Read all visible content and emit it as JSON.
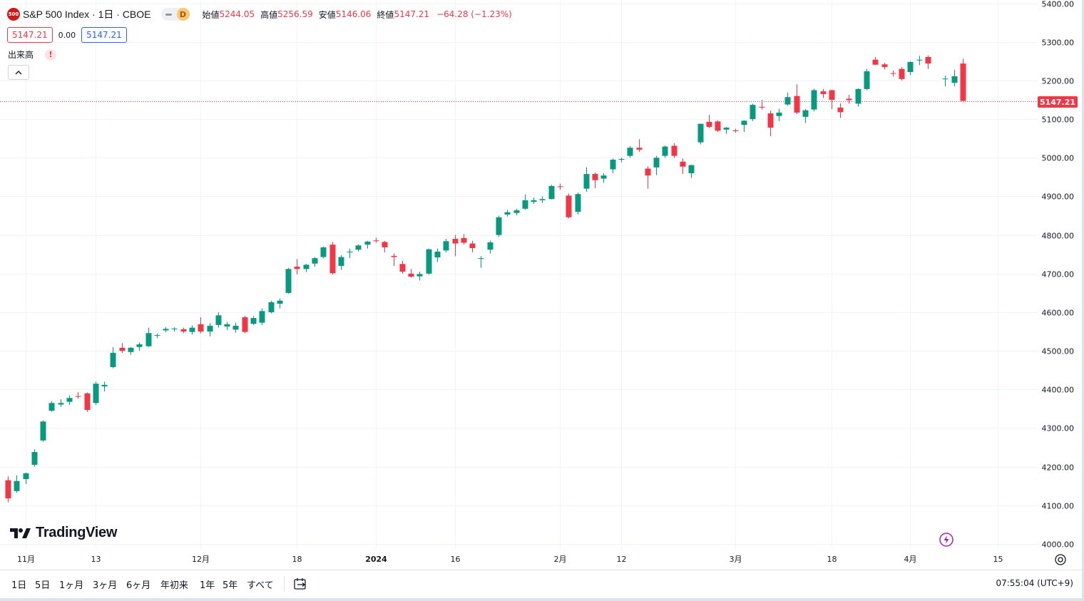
{
  "symbol": {
    "logo_text": "500",
    "title": "S&P 500 Index · 1日 · CBOE",
    "source_badge": "D"
  },
  "ohlc": {
    "open_label": "始値",
    "open": "5244.05",
    "high_label": "高値",
    "high": "5256.59",
    "low_label": "安値",
    "low": "5146.06",
    "close_label": "終値",
    "close": "5147.21",
    "change": "−64.28 (−1.23%)"
  },
  "badges": {
    "sell": "5147.21",
    "spread": "0.00",
    "buy": "5147.21"
  },
  "volume": {
    "label": "出来高",
    "warning": "!"
  },
  "last_price_tag": "5147.21",
  "brand": "TradingView",
  "bottom": {
    "ranges": [
      "1日",
      "5日",
      "1ヶ月",
      "3ヶ月",
      "6ヶ月",
      "年初来",
      "1年",
      "5年",
      "すべて"
    ],
    "clock": "07:55:04 (UTC+9)"
  },
  "colors": {
    "up": "#089981",
    "down": "#f23645",
    "grid": "#f0f3fa",
    "last_price_line": "#f23645"
  },
  "chart_data": {
    "type": "candlestick",
    "title": "S&P 500 Index · 1日 · CBOE",
    "y_axis": {
      "ticks": [
        4000,
        4100,
        4200,
        4300,
        4400,
        4500,
        4600,
        4700,
        4800,
        4900,
        5000,
        5100,
        5200,
        5300,
        5400
      ],
      "range": [
        4000,
        5400
      ],
      "side": "right"
    },
    "x_axis": {
      "labels": [
        {
          "index": 2,
          "text": "11月"
        },
        {
          "index": 10,
          "text": "13"
        },
        {
          "index": 22,
          "text": "12月"
        },
        {
          "index": 33,
          "text": "18"
        },
        {
          "index": 42,
          "text": "2024",
          "bold": true
        },
        {
          "index": 51,
          "text": "16"
        },
        {
          "index": 63,
          "text": "2月"
        },
        {
          "index": 70,
          "text": "12"
        },
        {
          "index": 83,
          "text": "3月"
        },
        {
          "index": 94,
          "text": "18"
        },
        {
          "index": 103,
          "text": "4月"
        },
        {
          "index": 113,
          "text": "15"
        }
      ]
    },
    "last_price": 5147.21,
    "candles": [
      {
        "o": 4165,
        "h": 4175,
        "l": 4108,
        "c": 4118
      },
      {
        "o": 4137,
        "h": 4178,
        "l": 4133,
        "c": 4163
      },
      {
        "o": 4168,
        "h": 4185,
        "l": 4155,
        "c": 4183
      },
      {
        "o": 4205,
        "h": 4245,
        "l": 4200,
        "c": 4238
      },
      {
        "o": 4268,
        "h": 4320,
        "l": 4265,
        "c": 4317
      },
      {
        "o": 4345,
        "h": 4370,
        "l": 4342,
        "c": 4365
      },
      {
        "o": 4361,
        "h": 4375,
        "l": 4355,
        "c": 4365
      },
      {
        "o": 4368,
        "h": 4385,
        "l": 4360,
        "c": 4378
      },
      {
        "o": 4383,
        "h": 4393,
        "l": 4376,
        "c": 4382
      },
      {
        "o": 4390,
        "h": 4392,
        "l": 4342,
        "c": 4347
      },
      {
        "o": 4365,
        "h": 4420,
        "l": 4360,
        "c": 4415
      },
      {
        "o": 4408,
        "h": 4420,
        "l": 4395,
        "c": 4412
      },
      {
        "o": 4458,
        "h": 4510,
        "l": 4455,
        "c": 4495
      },
      {
        "o": 4508,
        "h": 4520,
        "l": 4495,
        "c": 4500
      },
      {
        "o": 4497,
        "h": 4510,
        "l": 4490,
        "c": 4508
      },
      {
        "o": 4510,
        "h": 4522,
        "l": 4500,
        "c": 4517
      },
      {
        "o": 4512,
        "h": 4560,
        "l": 4510,
        "c": 4546
      },
      {
        "o": 4540,
        "h": 4545,
        "l": 4533,
        "c": 4541
      },
      {
        "o": 4553,
        "h": 4562,
        "l": 4548,
        "c": 4557
      },
      {
        "o": 4556,
        "h": 4561,
        "l": 4550,
        "c": 4558
      },
      {
        "o": 4556,
        "h": 4560,
        "l": 4546,
        "c": 4550
      },
      {
        "o": 4549,
        "h": 4566,
        "l": 4542,
        "c": 4560
      },
      {
        "o": 4569,
        "h": 4587,
        "l": 4545,
        "c": 4550
      },
      {
        "o": 4550,
        "h": 4572,
        "l": 4538,
        "c": 4565
      },
      {
        "o": 4567,
        "h": 4600,
        "l": 4560,
        "c": 4592
      },
      {
        "o": 4563,
        "h": 4575,
        "l": 4554,
        "c": 4569
      },
      {
        "o": 4555,
        "h": 4573,
        "l": 4547,
        "c": 4565
      },
      {
        "o": 4587,
        "h": 4591,
        "l": 4546,
        "c": 4549
      },
      {
        "o": 4570,
        "h": 4590,
        "l": 4567,
        "c": 4585
      },
      {
        "o": 4573,
        "h": 4610,
        "l": 4567,
        "c": 4603
      },
      {
        "o": 4600,
        "h": 4630,
        "l": 4597,
        "c": 4626
      },
      {
        "o": 4622,
        "h": 4636,
        "l": 4610,
        "c": 4630
      },
      {
        "o": 4650,
        "h": 4715,
        "l": 4648,
        "c": 4712
      },
      {
        "o": 4718,
        "h": 4738,
        "l": 4698,
        "c": 4712
      },
      {
        "o": 4712,
        "h": 4725,
        "l": 4704,
        "c": 4723
      },
      {
        "o": 4726,
        "h": 4743,
        "l": 4718,
        "c": 4740
      },
      {
        "o": 4743,
        "h": 4770,
        "l": 4740,
        "c": 4768
      },
      {
        "o": 4775,
        "h": 4782,
        "l": 4697,
        "c": 4701
      },
      {
        "o": 4720,
        "h": 4748,
        "l": 4710,
        "c": 4743
      },
      {
        "o": 4755,
        "h": 4765,
        "l": 4740,
        "c": 4757
      },
      {
        "o": 4762,
        "h": 4775,
        "l": 4757,
        "c": 4773
      },
      {
        "o": 4775,
        "h": 4785,
        "l": 4765,
        "c": 4783
      },
      {
        "o": 4786,
        "h": 4793,
        "l": 4780,
        "c": 4784
      },
      {
        "o": 4782,
        "h": 4785,
        "l": 4755,
        "c": 4768
      },
      {
        "o": 4746,
        "h": 4752,
        "l": 4720,
        "c": 4743
      },
      {
        "o": 4725,
        "h": 4733,
        "l": 4700,
        "c": 4705
      },
      {
        "o": 4700,
        "h": 4712,
        "l": 4690,
        "c": 4692
      },
      {
        "o": 4693,
        "h": 4705,
        "l": 4682,
        "c": 4699
      },
      {
        "o": 4700,
        "h": 4765,
        "l": 4697,
        "c": 4763
      },
      {
        "o": 4742,
        "h": 4765,
        "l": 4730,
        "c": 4757
      },
      {
        "o": 4760,
        "h": 4790,
        "l": 4755,
        "c": 4784
      },
      {
        "o": 4790,
        "h": 4800,
        "l": 4745,
        "c": 4778
      },
      {
        "o": 4792,
        "h": 4802,
        "l": 4775,
        "c": 4780
      },
      {
        "o": 4778,
        "h": 4785,
        "l": 4755,
        "c": 4766
      },
      {
        "o": 4738,
        "h": 4745,
        "l": 4715,
        "c": 4740
      },
      {
        "o": 4762,
        "h": 4786,
        "l": 4752,
        "c": 4781
      },
      {
        "o": 4800,
        "h": 4850,
        "l": 4795,
        "c": 4846
      },
      {
        "o": 4853,
        "h": 4865,
        "l": 4848,
        "c": 4859
      },
      {
        "o": 4857,
        "h": 4868,
        "l": 4851,
        "c": 4864
      },
      {
        "o": 4868,
        "h": 4905,
        "l": 4865,
        "c": 4890
      },
      {
        "o": 4886,
        "h": 4897,
        "l": 4880,
        "c": 4890
      },
      {
        "o": 4890,
        "h": 4900,
        "l": 4883,
        "c": 4893
      },
      {
        "o": 4893,
        "h": 4930,
        "l": 4892,
        "c": 4927
      },
      {
        "o": 4926,
        "h": 4933,
        "l": 4917,
        "c": 4925
      },
      {
        "o": 4902,
        "h": 4907,
        "l": 4843,
        "c": 4846
      },
      {
        "o": 4860,
        "h": 4910,
        "l": 4853,
        "c": 4906
      },
      {
        "o": 4920,
        "h": 4975,
        "l": 4912,
        "c": 4958
      },
      {
        "o": 4958,
        "h": 4962,
        "l": 4921,
        "c": 4942
      },
      {
        "o": 4946,
        "h": 4960,
        "l": 4935,
        "c": 4954
      },
      {
        "o": 4970,
        "h": 4998,
        "l": 4960,
        "c": 4995
      },
      {
        "o": 4995,
        "h": 5000,
        "l": 4988,
        "c": 4997
      },
      {
        "o": 5005,
        "h": 5030,
        "l": 5000,
        "c": 5026
      },
      {
        "o": 5026,
        "h": 5048,
        "l": 5015,
        "c": 5021
      },
      {
        "o": 4972,
        "h": 4978,
        "l": 4920,
        "c": 4954
      },
      {
        "o": 4975,
        "h": 5005,
        "l": 4955,
        "c": 5000
      },
      {
        "o": 5005,
        "h": 5032,
        "l": 5000,
        "c": 5029
      },
      {
        "o": 5031,
        "h": 5038,
        "l": 5000,
        "c": 5005
      },
      {
        "o": 4990,
        "h": 4998,
        "l": 4958,
        "c": 4977
      },
      {
        "o": 4960,
        "h": 4982,
        "l": 4948,
        "c": 4981
      },
      {
        "o": 5040,
        "h": 5088,
        "l": 5035,
        "c": 5088
      },
      {
        "o": 5093,
        "h": 5111,
        "l": 5077,
        "c": 5080
      },
      {
        "o": 5094,
        "h": 5097,
        "l": 5067,
        "c": 5070
      },
      {
        "o": 5073,
        "h": 5080,
        "l": 5062,
        "c": 5078
      },
      {
        "o": 5071,
        "h": 5075,
        "l": 5065,
        "c": 5069
      },
      {
        "o": 5085,
        "h": 5097,
        "l": 5067,
        "c": 5096
      },
      {
        "o": 5100,
        "h": 5140,
        "l": 5095,
        "c": 5137
      },
      {
        "o": 5132,
        "h": 5150,
        "l": 5125,
        "c": 5130
      },
      {
        "o": 5115,
        "h": 5122,
        "l": 5056,
        "c": 5078
      },
      {
        "o": 5108,
        "h": 5127,
        "l": 5095,
        "c": 5117
      },
      {
        "o": 5138,
        "h": 5169,
        "l": 5135,
        "c": 5157
      },
      {
        "o": 5160,
        "h": 5190,
        "l": 5113,
        "c": 5117
      },
      {
        "o": 5106,
        "h": 5126,
        "l": 5090,
        "c": 5123
      },
      {
        "o": 5125,
        "h": 5179,
        "l": 5120,
        "c": 5175
      },
      {
        "o": 5172,
        "h": 5178,
        "l": 5155,
        "c": 5165
      },
      {
        "o": 5175,
        "h": 5176,
        "l": 5126,
        "c": 5150
      },
      {
        "o": 5130,
        "h": 5141,
        "l": 5103,
        "c": 5118
      },
      {
        "o": 5153,
        "h": 5163,
        "l": 5140,
        "c": 5149
      },
      {
        "o": 5140,
        "h": 5180,
        "l": 5132,
        "c": 5178
      },
      {
        "o": 5178,
        "h": 5230,
        "l": 5175,
        "c": 5224
      },
      {
        "o": 5254,
        "h": 5261,
        "l": 5240,
        "c": 5241
      },
      {
        "o": 5242,
        "h": 5246,
        "l": 5229,
        "c": 5235
      },
      {
        "o": 5219,
        "h": 5226,
        "l": 5210,
        "c": 5218
      },
      {
        "o": 5230,
        "h": 5235,
        "l": 5200,
        "c": 5204
      },
      {
        "o": 5222,
        "h": 5250,
        "l": 5214,
        "c": 5248
      },
      {
        "o": 5252,
        "h": 5264,
        "l": 5240,
        "c": 5254
      },
      {
        "o": 5261,
        "h": 5265,
        "l": 5230,
        "c": 5244
      },
      null,
      {
        "o": 5204,
        "h": 5213,
        "l": 5185,
        "c": 5205
      },
      {
        "o": 5194,
        "h": 5228,
        "l": 5185,
        "c": 5211
      },
      {
        "o": 5244.05,
        "h": 5256.59,
        "l": 5146.06,
        "c": 5147.21
      }
    ]
  }
}
